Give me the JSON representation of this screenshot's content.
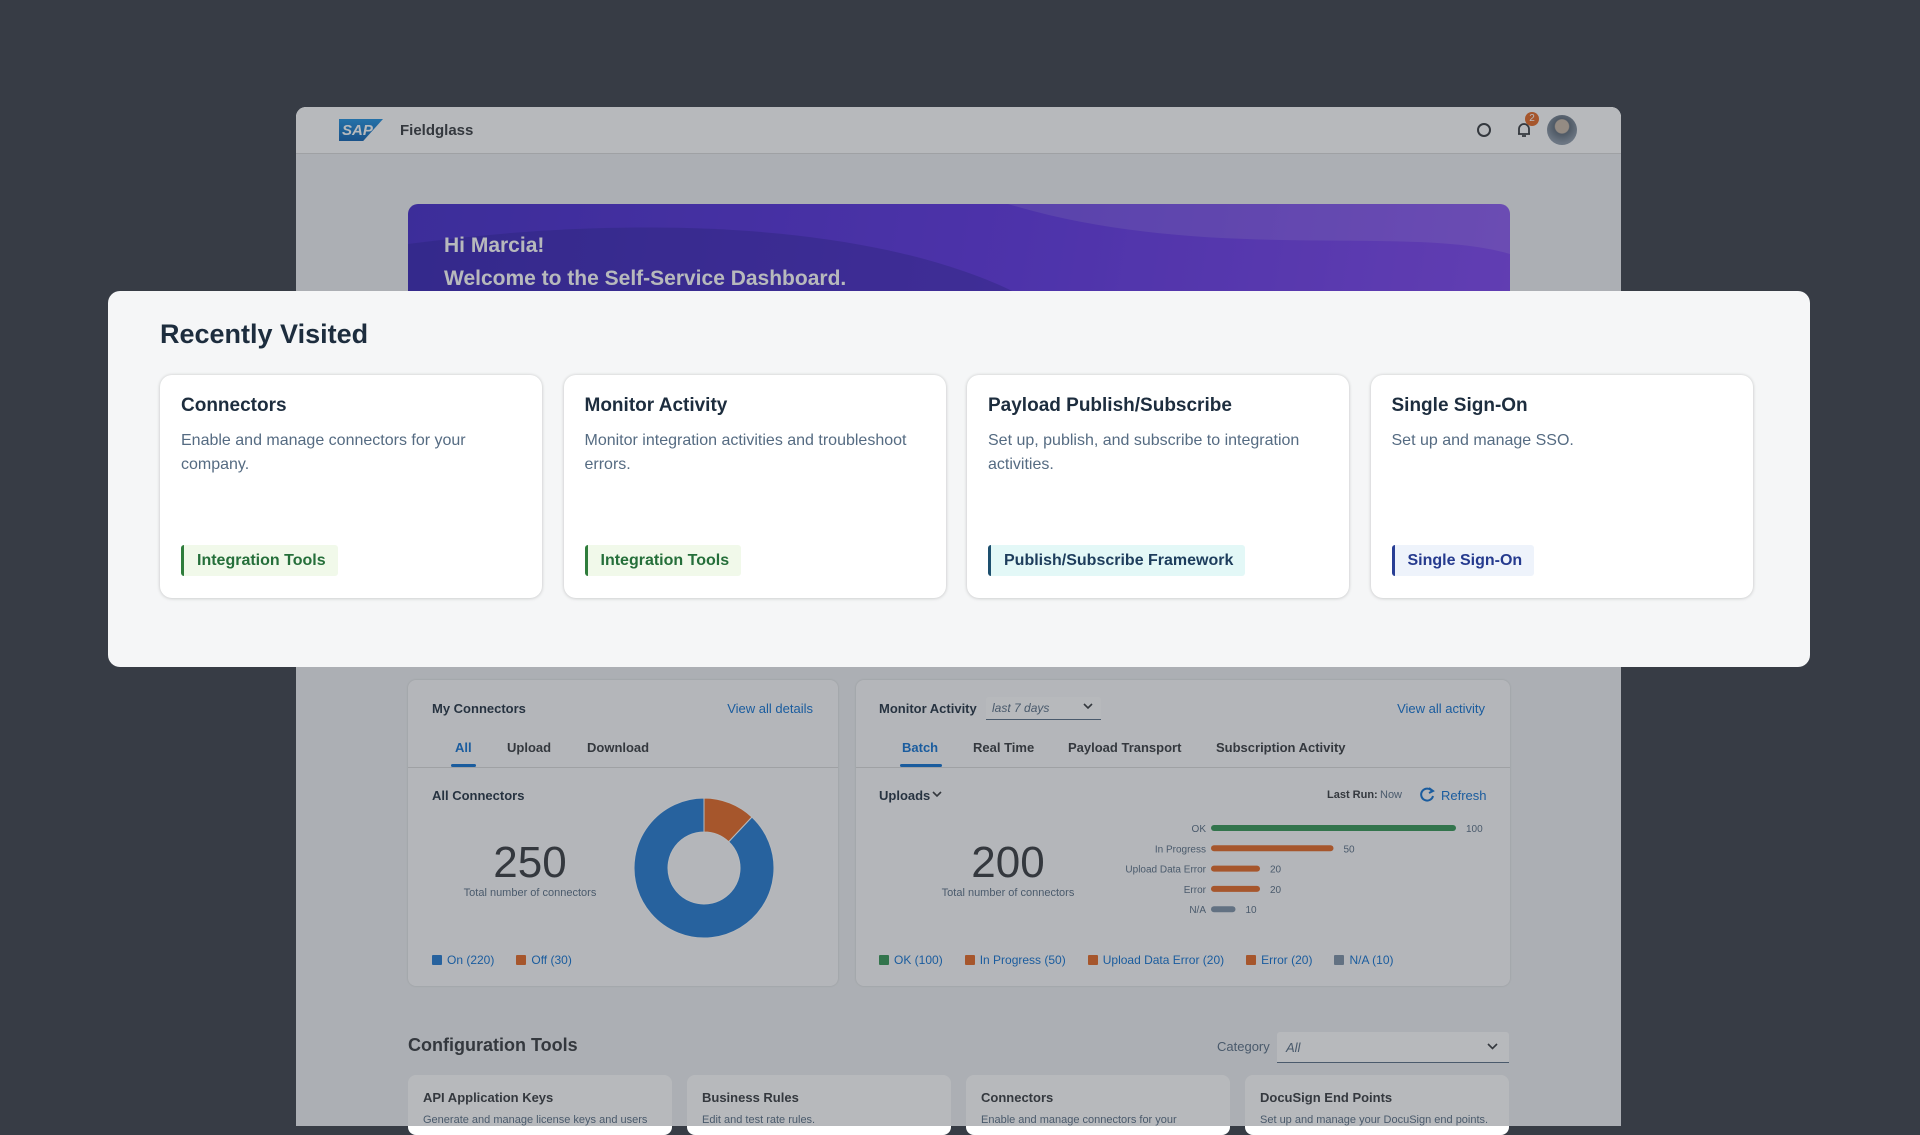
{
  "header": {
    "logo": "SAP",
    "brand": "Fieldglass",
    "notification_count": 2
  },
  "banner": {
    "greeting": "Hi Marcia!",
    "welcome": "Welcome to the Self-Service Dashboard."
  },
  "recently_visited": {
    "title": "Recently Visited",
    "cards": [
      {
        "title": "Connectors",
        "description": "Enable and manage connectors for your company.",
        "tag": "Integration Tools"
      },
      {
        "title": "Monitor Activity",
        "description": "Monitor integration activities and troubleshoot errors.",
        "tag": "Integration Tools"
      },
      {
        "title": "Payload Publish/Subscribe",
        "description": "Set up, publish, and subscribe to integration activities.",
        "tag": "Publish/Subscribe Framework"
      },
      {
        "title": "Single Sign-On",
        "description": "Set up and manage SSO.",
        "tag": "Single Sign-On"
      }
    ]
  },
  "my_connectors": {
    "title": "My Connectors",
    "link": "View all details",
    "tabs": [
      "All",
      "Upload",
      "Download"
    ],
    "subtitle": "All Connectors",
    "total": 250,
    "total_label": "Total number of connectors",
    "chart": {
      "type": "pie",
      "categories": [
        "On",
        "Off"
      ],
      "values": [
        220,
        30
      ],
      "colors": [
        "#1f78d1",
        "#e5651f"
      ],
      "legend": [
        "On (220)",
        "Off (30)"
      ]
    }
  },
  "monitor_activity": {
    "title": "Monitor Activity",
    "period": "last 7 days",
    "link": "View all activity",
    "tabs": [
      "Batch",
      "Real Time",
      "Payload Transport",
      "Subscription Activity"
    ],
    "dropdown": "Uploads",
    "last_run_label": "Last Run:",
    "last_run_value": "Now",
    "refresh": "Refresh",
    "total": 200,
    "total_label": "Total number of connectors",
    "chart": {
      "type": "bar",
      "orientation": "horizontal",
      "categories": [
        "OK",
        "In Progress",
        "Upload Data Error",
        "Error",
        "N/A"
      ],
      "values": [
        100,
        50,
        20,
        20,
        10
      ],
      "xlim": [
        0,
        100
      ],
      "colors": [
        "#2f9450",
        "#e5651f",
        "#e5651f",
        "#e5651f",
        "#7b8fa5"
      ],
      "legend": [
        "OK (100)",
        "In Progress (50)",
        "Upload Data Error (20)",
        "Error (20)",
        "N/A (10)"
      ]
    }
  },
  "configuration_tools": {
    "title": "Configuration Tools",
    "category_label": "Category",
    "category_value": "All",
    "cards": [
      {
        "title": "API Application Keys",
        "description": "Generate and manage license keys and users"
      },
      {
        "title": "Business Rules",
        "description": "Edit and test rate rules."
      },
      {
        "title": "Connectors",
        "description": "Enable and manage connectors for your"
      },
      {
        "title": "DocuSign End Points",
        "description": "Set up and manage your DocuSign end points."
      }
    ]
  }
}
